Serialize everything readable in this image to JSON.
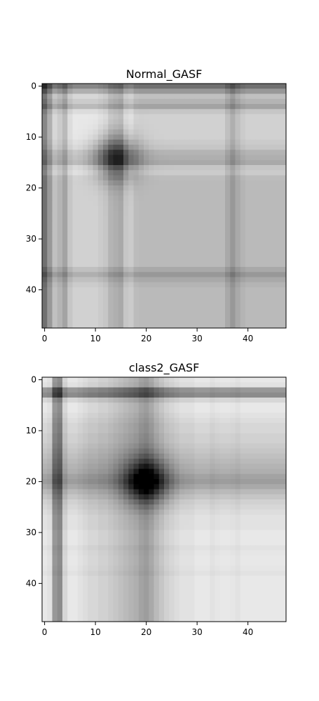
{
  "chart_data": [
    {
      "type": "heatmap",
      "title": "Normal_GASF",
      "xlabel": "",
      "ylabel": "",
      "size": 48,
      "x_ticks": [
        "0",
        "10",
        "20",
        "30",
        "40"
      ],
      "y_ticks": [
        "0",
        "10",
        "20",
        "30",
        "40"
      ],
      "colormap": "gray_r",
      "value_range": [
        -1,
        1
      ],
      "row_profile": [
        0.95,
        0.6,
        0.25,
        0.35,
        0.5,
        0.2,
        0.1,
        0.1,
        0.1,
        0.1,
        0.1,
        0.15,
        0.2,
        0.35,
        0.4,
        0.45,
        0.2,
        0.15,
        0.28,
        0.3,
        0.3,
        0.3,
        0.3,
        0.3,
        0.3,
        0.3,
        0.3,
        0.3,
        0.3,
        0.3,
        0.3,
        0.3,
        0.3,
        0.3,
        0.3,
        0.3,
        0.45,
        0.6,
        0.45,
        0.35,
        0.3,
        0.3,
        0.3,
        0.3,
        0.3,
        0.3,
        0.3,
        0.3
      ],
      "peak_center": [
        14,
        14
      ],
      "peak_intensity": 0.95
    },
    {
      "type": "heatmap",
      "title": "class2_GASF",
      "xlabel": "",
      "ylabel": "",
      "size": 48,
      "x_ticks": [
        "0",
        "10",
        "20",
        "30",
        "40"
      ],
      "y_ticks": [
        "0",
        "10",
        "20",
        "30",
        "40"
      ],
      "colormap": "gray_r",
      "value_range": [
        -1,
        1
      ],
      "row_profile": [
        0.1,
        0.15,
        0.8,
        0.9,
        0.25,
        0.1,
        0.1,
        0.15,
        0.2,
        0.25,
        0.25,
        0.3,
        0.3,
        0.35,
        0.4,
        0.45,
        0.5,
        0.55,
        0.6,
        0.7,
        0.75,
        0.65,
        0.5,
        0.4,
        0.3,
        0.25,
        0.2,
        0.15,
        0.15,
        0.15,
        0.1,
        0.1,
        0.1,
        0.15,
        0.12,
        0.1,
        0.1,
        0.12,
        0.15,
        0.1,
        0.1,
        0.1,
        0.1,
        0.1,
        0.1,
        0.1,
        0.1,
        0.1
      ],
      "peak_center": [
        20,
        20
      ],
      "peak_intensity": 1.0
    }
  ]
}
